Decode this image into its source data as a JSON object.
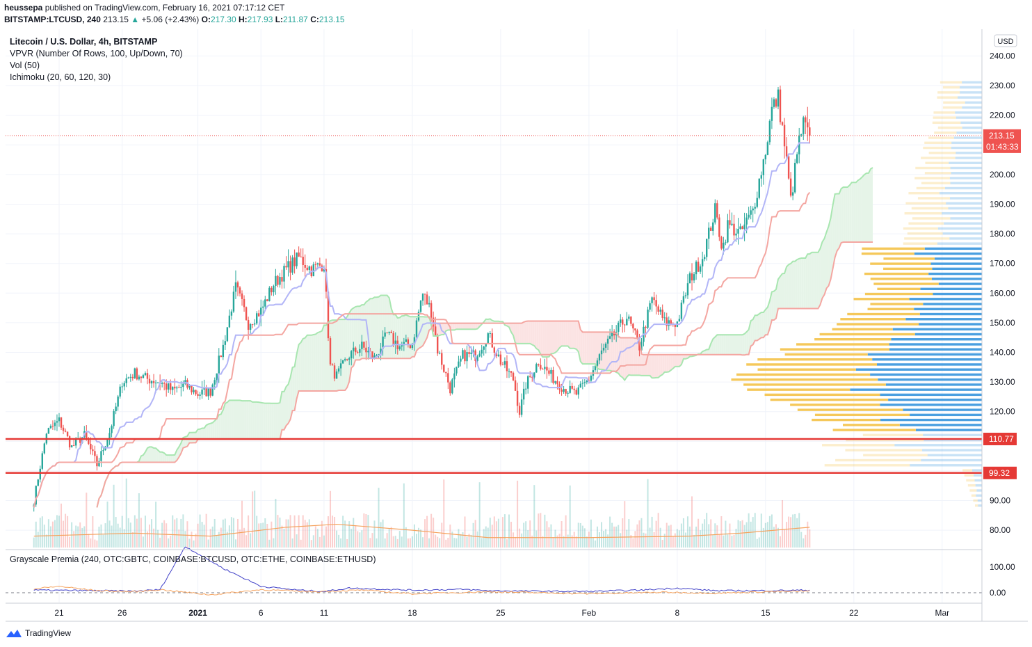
{
  "header": {
    "line1_user": "heussepa",
    "line1_rest": "published on TradingView.com, February 16, 2021 07:17:12 CET",
    "symbol": "BITSTAMP:LTCUSD, 240",
    "last": "213.15",
    "change": "+5.06 (+2.43%)",
    "o_label": "O:",
    "o": "217.30",
    "h_label": "H:",
    "h": "217.93",
    "l_label": "L:",
    "l": "211.87",
    "c_label": "C:",
    "c": "213.15"
  },
  "legend": {
    "title": "Litecoin / U.S. Dollar, 4h, BITSTAMP",
    "vpvr": "VPVR (Number Of Rows, 100, Up/Down, 70)",
    "vol": "Vol (50)",
    "ichimoku": "Ichimoku (20, 60, 120, 30)",
    "premia": "Grayscale Premia (240, OTC:GBTC, COINBASE:BTCUSD, OTC:ETHE, COINBASE:ETHUSD)"
  },
  "footer": {
    "brand": "TradingView"
  },
  "colors": {
    "up": "#26a69a",
    "down": "#ef5350",
    "tenkan": "#b2b5f7",
    "kijun": "#f4a6a1",
    "spanA": "#a8e6b0",
    "spanB": "#f4a6a1",
    "cloud_bull": "#e6f4e8",
    "cloud_bear": "#fbe3e3",
    "hline": "#e53935",
    "vol_ma": "#f5a25d",
    "premia_btc": "#3f3fc7",
    "premia_eth": "#f5a25d",
    "vp_up": "#4a9fe0",
    "vp_down": "#f5c85a"
  },
  "chart_data": {
    "type": "candlestick",
    "currency_badge": "USD",
    "price_axis": {
      "min": 75,
      "max": 245,
      "ticks": [
        "240.00",
        "230.00",
        "220.00",
        "210.00",
        "200.00",
        "190.00",
        "180.00",
        "170.00",
        "160.00",
        "150.00",
        "140.00",
        "130.00",
        "120.00",
        "110.00",
        "100.00",
        "90.00",
        "80.00"
      ]
    },
    "price_label": {
      "value": 213.15,
      "text": "213.15",
      "countdown": "01:43:33"
    },
    "horizontal_lines": [
      {
        "value": 110.77,
        "text": "110.77"
      },
      {
        "value": 99.32,
        "text": "99.32"
      }
    ],
    "time_axis": {
      "ticks": [
        {
          "label": "21",
          "day": 2
        },
        {
          "label": "26",
          "day": 7
        },
        {
          "label": "2021",
          "day": 13
        },
        {
          "label": "6",
          "day": 18
        },
        {
          "label": "11",
          "day": 23
        },
        {
          "label": "18",
          "day": 30
        },
        {
          "label": "25",
          "day": 37
        },
        {
          "label": "Feb",
          "day": 44
        },
        {
          "label": "8",
          "day": 51
        },
        {
          "label": "15",
          "day": 58
        },
        {
          "label": "22",
          "day": 65
        },
        {
          "label": "Mar",
          "day": 72
        }
      ]
    },
    "price_path": [
      [
        0,
        90
      ],
      [
        1,
        113
      ],
      [
        2,
        117
      ],
      [
        3,
        108
      ],
      [
        4,
        112
      ],
      [
        5,
        102
      ],
      [
        6,
        113
      ],
      [
        7,
        130
      ],
      [
        8,
        133
      ],
      [
        9,
        131
      ],
      [
        10,
        130
      ],
      [
        11,
        127
      ],
      [
        12,
        129
      ],
      [
        13,
        126
      ],
      [
        14,
        127
      ],
      [
        15,
        142
      ],
      [
        16,
        162
      ],
      [
        17,
        150
      ],
      [
        18,
        154
      ],
      [
        19,
        163
      ],
      [
        20,
        168
      ],
      [
        21,
        172
      ],
      [
        22,
        168
      ],
      [
        23,
        170
      ],
      [
        23.5,
        135
      ],
      [
        24,
        132
      ],
      [
        25,
        139
      ],
      [
        26,
        142
      ],
      [
        27,
        138
      ],
      [
        28,
        146
      ],
      [
        29,
        142
      ],
      [
        30,
        143
      ],
      [
        30.8,
        160
      ],
      [
        31.5,
        154
      ],
      [
        32,
        141
      ],
      [
        33,
        128
      ],
      [
        34,
        139
      ],
      [
        35,
        139
      ],
      [
        36,
        146
      ],
      [
        37,
        137
      ],
      [
        38,
        131
      ],
      [
        38.5,
        120
      ],
      [
        39,
        129
      ],
      [
        40,
        137
      ],
      [
        41,
        132
      ],
      [
        42,
        128
      ],
      [
        43,
        126
      ],
      [
        44,
        131
      ],
      [
        45,
        140
      ],
      [
        46,
        146
      ],
      [
        47,
        152
      ],
      [
        48,
        142
      ],
      [
        49,
        158
      ],
      [
        50,
        150
      ],
      [
        51,
        150
      ],
      [
        52,
        165
      ],
      [
        53,
        172
      ],
      [
        54,
        188
      ],
      [
        54.6,
        175
      ],
      [
        55,
        183
      ],
      [
        56,
        180
      ],
      [
        57,
        188
      ],
      [
        58,
        208
      ],
      [
        58.5,
        222
      ],
      [
        59,
        226
      ],
      [
        59.6,
        207
      ],
      [
        60,
        191
      ],
      [
        60.6,
        210
      ],
      [
        61,
        217
      ],
      [
        61.5,
        213.15
      ]
    ],
    "volume": {
      "ma": [
        [
          0,
          78
        ],
        [
          8,
          79
        ],
        [
          14,
          78
        ],
        [
          20,
          81
        ],
        [
          24,
          82
        ],
        [
          30,
          80
        ],
        [
          36,
          77.5
        ],
        [
          44,
          77.5
        ],
        [
          52,
          78
        ],
        [
          56,
          79
        ],
        [
          61.5,
          81
        ]
      ]
    },
    "premia": {
      "axis": {
        "ticks": [
          "100.00",
          "0.00"
        ]
      },
      "series": [
        {
          "values": [
            [
              0,
              10
            ],
            [
              5,
              8
            ],
            [
              8,
              6
            ],
            [
              10,
              12
            ],
            [
              12,
              180
            ],
            [
              15,
              95
            ],
            [
              18,
              25
            ],
            [
              21,
              10
            ],
            [
              23,
              5
            ],
            [
              25,
              18
            ],
            [
              30,
              10
            ],
            [
              34,
              13
            ],
            [
              36,
              8
            ],
            [
              40,
              6
            ],
            [
              44,
              5
            ],
            [
              48,
              10
            ],
            [
              51,
              18
            ],
            [
              54,
              8
            ],
            [
              58,
              8
            ],
            [
              61.5,
              10
            ]
          ]
        },
        {
          "values": [
            [
              0,
              15
            ],
            [
              2,
              25
            ],
            [
              5,
              8
            ],
            [
              8,
              4
            ],
            [
              10,
              12
            ],
            [
              14,
              -8
            ],
            [
              18,
              12
            ],
            [
              22,
              4
            ],
            [
              26,
              10
            ],
            [
              30,
              -4
            ],
            [
              36,
              4
            ],
            [
              44,
              -4
            ],
            [
              50,
              2
            ],
            [
              54,
              -2
            ],
            [
              58,
              4
            ],
            [
              61.5,
              6
            ]
          ]
        }
      ]
    },
    "vpvr": {
      "up_share_note": ""
    }
  }
}
